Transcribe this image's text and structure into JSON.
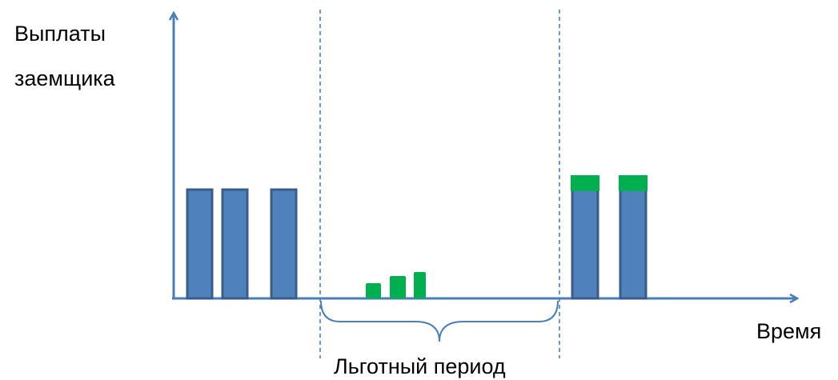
{
  "labels": {
    "y_axis_line1": "Выплаты",
    "y_axis_line2": "заемщика",
    "x_axis": "Время",
    "grace_period": "Льготный период"
  },
  "colors": {
    "axis": "#4a7ebb",
    "bar_fill": "#4f81bd",
    "bar_border": "#385d8a",
    "interest": "#00b050"
  },
  "payments": {
    "before_grace": [
      1,
      1,
      1
    ],
    "during_grace_interest_only": [
      0.14,
      0.2,
      0.24
    ],
    "after_grace_principal": [
      1,
      1
    ],
    "after_grace_interest_cap": [
      0.15,
      0.15
    ]
  }
}
